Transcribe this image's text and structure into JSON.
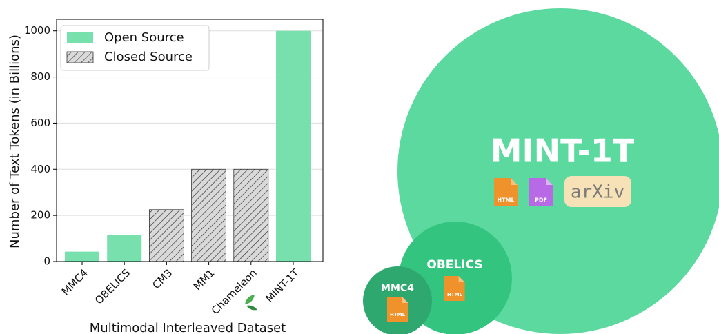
{
  "chart_data": {
    "type": "bar",
    "x_label": "Multimodal Interleaved Dataset",
    "y_label": "Number of Text Tokens (in Billions)",
    "categories": [
      "MMC4",
      "OBELICS",
      "CM3",
      "MM1",
      "Chameleon",
      "MINT-1T"
    ],
    "series": [
      {
        "name": "Open Source",
        "color": "#77e0ad",
        "hatch": false,
        "values": [
          43,
          115,
          null,
          null,
          null,
          1000
        ]
      },
      {
        "name": "Closed Source",
        "color": "#d9d9d9",
        "hatch": true,
        "values": [
          null,
          null,
          225,
          400,
          400,
          null
        ]
      }
    ],
    "ylim": [
      0,
      1050
    ],
    "yticks": [
      0,
      200,
      400,
      600,
      800,
      1000
    ],
    "grid": true,
    "legend": "upper left"
  },
  "diagram": {
    "circles": [
      {
        "label": "MINT-1T",
        "icons": [
          "HTML",
          "PDF",
          "arXiv"
        ]
      },
      {
        "label": "OBELICS",
        "icons": [
          "HTML"
        ]
      },
      {
        "label": "MMC4",
        "icons": [
          "HTML"
        ]
      }
    ]
  }
}
